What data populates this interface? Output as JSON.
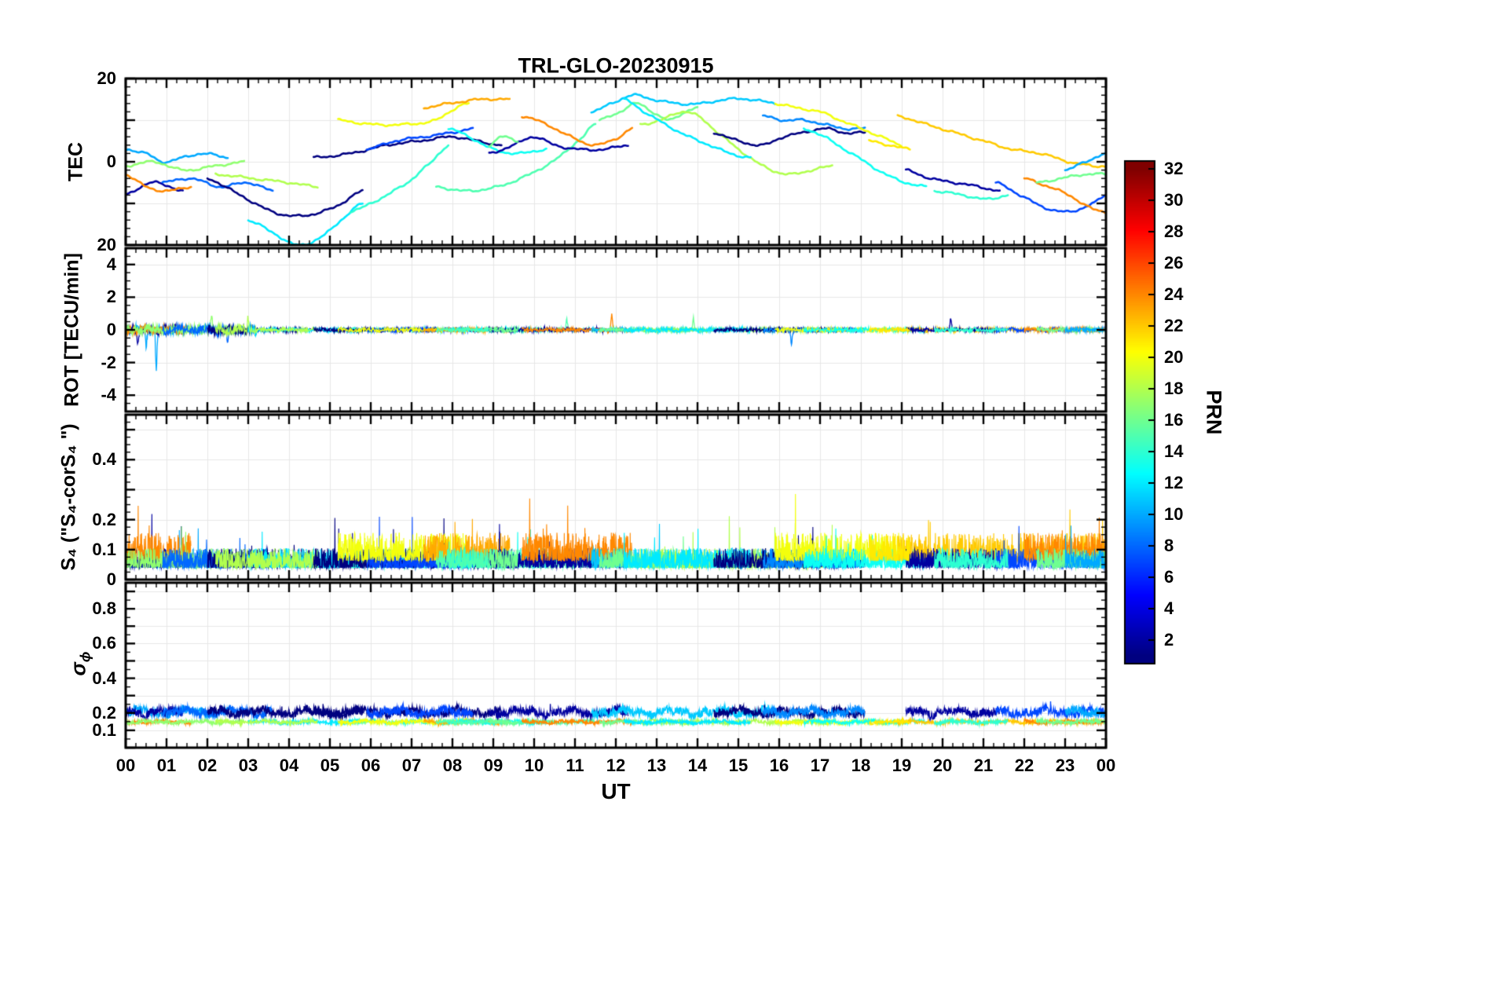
{
  "title": "TRL-GLO-20230915",
  "x_axis": {
    "label": "UT",
    "min": 0,
    "max": 24,
    "major_step": 1,
    "minor_step": 0.25,
    "tick_labels": [
      "00",
      "01",
      "02",
      "03",
      "04",
      "05",
      "06",
      "07",
      "08",
      "09",
      "10",
      "11",
      "12",
      "13",
      "14",
      "15",
      "16",
      "17",
      "18",
      "19",
      "20",
      "21",
      "22",
      "23",
      "00"
    ]
  },
  "colorbar": {
    "label": "PRN",
    "colormap": "jet",
    "min": 0.5,
    "max": 32.5,
    "ticks": [
      2,
      4,
      6,
      8,
      10,
      12,
      14,
      16,
      18,
      20,
      22,
      24,
      26,
      28,
      30,
      32
    ]
  },
  "panels": {
    "tec": {
      "ylabel": "TEC",
      "ylim": [
        -20,
        20
      ],
      "major_step": 10,
      "minor_step": 2,
      "tick_labels": [
        {
          "value": 20,
          "label": "20"
        },
        {
          "value": 0,
          "label": "0"
        },
        {
          "value": -20,
          "label": "20"
        }
      ]
    },
    "rot": {
      "ylabel": "ROT [TECU/min]",
      "ylim": [
        -5,
        5
      ],
      "major_step": 2,
      "minor_step": 0.5,
      "tick_labels": [
        {
          "value": 4,
          "label": "4"
        },
        {
          "value": 2,
          "label": "2"
        },
        {
          "value": 0,
          "label": "0"
        },
        {
          "value": -2,
          "label": "-2"
        },
        {
          "value": -4,
          "label": "-4"
        }
      ]
    },
    "s4": {
      "ylabel": "S₄ (\"S₄-corS₄ \")",
      "ylim": [
        0,
        0.55
      ],
      "major_step": 0.1,
      "minor_step": 0.025,
      "tick_labels": [
        {
          "value": 0.4,
          "label": "0.4"
        },
        {
          "value": 0.2,
          "label": "0.2"
        },
        {
          "value": 0.1,
          "label": "0.1"
        },
        {
          "value": 0,
          "label": "0"
        }
      ]
    },
    "sigma": {
      "ylabel_base": "σ",
      "ylabel_sub": "ϕ",
      "ylim": [
        0,
        0.95
      ],
      "major_step": 0.1,
      "minor_step": 0.05,
      "tick_labels": [
        {
          "value": 0.8,
          "label": "0.8"
        },
        {
          "value": 0.6,
          "label": "0.6"
        },
        {
          "value": 0.4,
          "label": "0.4"
        },
        {
          "value": 0.2,
          "label": "0.2"
        },
        {
          "value": 0.1,
          "label": "0.1"
        }
      ]
    }
  },
  "chart_data": {
    "type": "line",
    "x_unit": "UT hours",
    "colormap": "jet",
    "prn_color_range": [
      1,
      32
    ],
    "panel_order": [
      "tec",
      "rot",
      "s4",
      "sigma"
    ],
    "arcs": [
      {
        "prn": 10,
        "tec": [
          [
            0.0,
            3
          ],
          [
            0.5,
            2
          ],
          [
            0.9,
            0
          ],
          [
            1.4,
            1
          ],
          [
            1.9,
            2
          ],
          [
            2.5,
            1
          ]
        ]
      },
      {
        "prn": 2,
        "tec": [
          [
            0.0,
            -8
          ],
          [
            0.6,
            -5
          ],
          [
            1.1,
            -6
          ],
          [
            1.4,
            -7
          ]
        ]
      },
      {
        "prn": 24,
        "tec": [
          [
            0.0,
            -3
          ],
          [
            0.5,
            -6
          ],
          [
            1.0,
            -7
          ],
          [
            1.6,
            -6
          ]
        ]
      },
      {
        "prn": 17,
        "tec": [
          [
            0.0,
            -1
          ],
          [
            0.7,
            0
          ],
          [
            1.4,
            -2
          ],
          [
            2.2,
            -1
          ],
          [
            2.9,
            0
          ]
        ]
      },
      {
        "prn": 8,
        "tec": [
          [
            0.9,
            -5
          ],
          [
            1.6,
            -4
          ],
          [
            2.3,
            -6
          ],
          [
            3.0,
            -5
          ],
          [
            3.6,
            -7
          ]
        ]
      },
      {
        "prn": 1,
        "tec": [
          [
            2.0,
            -4
          ],
          [
            2.8,
            -8
          ],
          [
            3.6,
            -12
          ],
          [
            4.3,
            -13
          ],
          [
            5.1,
            -11
          ],
          [
            5.8,
            -7
          ]
        ]
      },
      {
        "prn": 12,
        "tec": [
          [
            3.0,
            -14
          ],
          [
            3.6,
            -17
          ],
          [
            4.2,
            -20
          ],
          [
            4.8,
            -18
          ],
          [
            5.4,
            -13
          ],
          [
            5.8,
            -10
          ]
        ]
      },
      {
        "prn": 18,
        "tec": [
          [
            2.2,
            -3
          ],
          [
            3.1,
            -4
          ],
          [
            4.0,
            -5
          ],
          [
            4.7,
            -6
          ]
        ]
      },
      {
        "prn": 14,
        "tec": [
          [
            5.5,
            -12
          ],
          [
            6.2,
            -9
          ],
          [
            6.9,
            -5
          ],
          [
            7.5,
            0
          ],
          [
            7.9,
            4
          ]
        ]
      },
      {
        "prn": 1,
        "tec": [
          [
            4.6,
            1
          ],
          [
            5.5,
            2
          ],
          [
            6.4,
            4
          ],
          [
            7.2,
            5
          ],
          [
            8.0,
            6
          ],
          [
            8.6,
            5
          ],
          [
            9.2,
            4
          ]
        ]
      },
      {
        "prn": 7,
        "tec": [
          [
            5.9,
            3
          ],
          [
            6.6,
            5
          ],
          [
            7.3,
            6
          ],
          [
            8.0,
            7
          ],
          [
            8.5,
            8
          ]
        ]
      },
      {
        "prn": 20,
        "tec": [
          [
            5.2,
            10
          ],
          [
            6.0,
            9
          ],
          [
            6.9,
            9
          ],
          [
            7.6,
            10
          ],
          [
            8.1,
            13
          ],
          [
            8.4,
            14
          ]
        ]
      },
      {
        "prn": 23,
        "tec": [
          [
            7.3,
            13
          ],
          [
            7.9,
            14
          ],
          [
            8.7,
            15
          ],
          [
            9.4,
            15
          ]
        ]
      },
      {
        "prn": 13,
        "tec": [
          [
            7.9,
            8
          ],
          [
            8.4,
            6
          ],
          [
            9.0,
            3
          ],
          [
            9.6,
            2
          ],
          [
            10.3,
            3
          ]
        ]
      },
      {
        "prn": 15,
        "tec": [
          [
            7.6,
            -6
          ],
          [
            8.3,
            -7
          ],
          [
            9.1,
            -6
          ],
          [
            9.9,
            -3
          ],
          [
            10.6,
            1
          ],
          [
            11.2,
            6
          ],
          [
            11.5,
            9
          ]
        ]
      },
      {
        "prn": 2,
        "tec": [
          [
            8.9,
            2
          ],
          [
            9.5,
            4
          ],
          [
            10.0,
            6
          ],
          [
            10.5,
            4
          ],
          [
            11.1,
            3
          ],
          [
            11.7,
            3
          ],
          [
            12.3,
            4
          ]
        ]
      },
      {
        "prn": 24,
        "tec": [
          [
            9.7,
            11
          ],
          [
            10.3,
            9
          ],
          [
            10.9,
            6
          ],
          [
            11.5,
            4
          ],
          [
            12.1,
            6
          ],
          [
            12.4,
            8
          ]
        ]
      },
      {
        "prn": 11,
        "tec": [
          [
            11.4,
            12
          ],
          [
            11.9,
            14
          ],
          [
            12.4,
            16
          ],
          [
            12.9,
            15
          ],
          [
            13.5,
            14
          ],
          [
            14.1,
            14
          ],
          [
            14.7,
            15
          ],
          [
            15.3,
            15
          ],
          [
            15.9,
            14
          ]
        ]
      },
      {
        "prn": 16,
        "tec": [
          [
            11.6,
            10
          ],
          [
            12.1,
            12
          ],
          [
            12.5,
            14
          ],
          [
            12.9,
            12
          ],
          [
            13.3,
            10
          ],
          [
            13.7,
            12
          ],
          [
            14.0,
            13
          ]
        ]
      },
      {
        "prn": 18,
        "tec": [
          [
            12.6,
            9
          ],
          [
            13.1,
            10
          ],
          [
            13.6,
            12
          ],
          [
            14.0,
            11
          ],
          [
            14.5,
            7
          ],
          [
            15.0,
            3
          ],
          [
            15.6,
            -1
          ],
          [
            16.2,
            -3
          ],
          [
            16.8,
            -2
          ],
          [
            17.3,
            -1
          ]
        ]
      },
      {
        "prn": 12,
        "tec": [
          [
            12.2,
            15
          ],
          [
            12.7,
            12
          ],
          [
            13.2,
            9
          ],
          [
            13.8,
            6
          ],
          [
            14.3,
            4
          ],
          [
            14.8,
            2
          ],
          [
            15.3,
            1
          ]
        ]
      },
      {
        "prn": 1,
        "tec": [
          [
            14.4,
            7
          ],
          [
            15.0,
            5
          ],
          [
            15.6,
            4
          ],
          [
            16.1,
            6
          ],
          [
            16.6,
            7
          ],
          [
            17.1,
            8
          ],
          [
            17.6,
            7
          ],
          [
            18.1,
            7
          ]
        ]
      },
      {
        "prn": 9,
        "tec": [
          [
            15.6,
            11
          ],
          [
            16.1,
            10
          ],
          [
            16.6,
            10
          ],
          [
            17.1,
            9
          ],
          [
            17.6,
            8
          ],
          [
            18.1,
            8
          ]
        ]
      },
      {
        "prn": 20,
        "tec": [
          [
            15.9,
            14
          ],
          [
            16.4,
            13
          ],
          [
            17.0,
            12
          ],
          [
            17.5,
            10
          ],
          [
            18.0,
            8
          ],
          [
            18.5,
            6
          ],
          [
            19.0,
            4
          ]
        ]
      },
      {
        "prn": 13,
        "tec": [
          [
            16.6,
            8
          ],
          [
            17.1,
            6
          ],
          [
            17.6,
            3
          ],
          [
            18.1,
            0
          ],
          [
            18.6,
            -3
          ],
          [
            19.1,
            -5
          ],
          [
            19.6,
            -6
          ]
        ]
      },
      {
        "prn": 22,
        "tec": [
          [
            18.9,
            11
          ],
          [
            19.6,
            9
          ],
          [
            20.3,
            7
          ],
          [
            21.0,
            5
          ],
          [
            21.7,
            3
          ],
          [
            22.4,
            2
          ],
          [
            23.1,
            0
          ],
          [
            23.7,
            -1
          ],
          [
            24.0,
            -1
          ]
        ]
      },
      {
        "prn": 2,
        "tec": [
          [
            19.1,
            -2
          ],
          [
            19.7,
            -4
          ],
          [
            20.3,
            -5
          ],
          [
            20.9,
            -6
          ],
          [
            21.4,
            -7
          ]
        ]
      },
      {
        "prn": 7,
        "tec": [
          [
            21.3,
            -5
          ],
          [
            21.9,
            -8
          ],
          [
            22.5,
            -11
          ],
          [
            23.1,
            -12
          ],
          [
            23.7,
            -10
          ],
          [
            24.0,
            -8
          ]
        ]
      },
      {
        "prn": 24,
        "tec": [
          [
            22.0,
            -4
          ],
          [
            22.6,
            -6
          ],
          [
            23.1,
            -8
          ],
          [
            23.6,
            -11
          ],
          [
            24.0,
            -12
          ]
        ]
      },
      {
        "prn": 16,
        "tec": [
          [
            22.3,
            -5
          ],
          [
            22.9,
            -4
          ],
          [
            23.5,
            -3
          ],
          [
            24.0,
            -3
          ]
        ]
      },
      {
        "prn": 14,
        "tec": [
          [
            19.8,
            -7
          ],
          [
            20.5,
            -8
          ],
          [
            21.1,
            -9
          ],
          [
            21.6,
            -8
          ]
        ]
      },
      {
        "prn": 10,
        "tec": [
          [
            23.0,
            -2
          ],
          [
            23.5,
            0
          ],
          [
            24.0,
            2
          ]
        ]
      },
      {
        "prn": 16,
        "tec": [
          [
            8.9,
            4
          ],
          [
            9.2,
            6
          ],
          [
            9.6,
            5
          ]
        ]
      },
      {
        "prn": 21,
        "tec": [
          [
            18.2,
            5
          ],
          [
            18.7,
            4
          ],
          [
            19.2,
            3
          ]
        ]
      }
    ],
    "rot_noise": {
      "amp_quiet": 0.13,
      "amp_active": 0.3,
      "active_before_hour": 3.2,
      "spikes": [
        {
          "prn": 10,
          "t": 0.75,
          "v": -2.5
        },
        {
          "prn": 10,
          "t": 0.5,
          "v": -1.0
        },
        {
          "prn": 17,
          "t": 2.1,
          "v": 1.1
        },
        {
          "prn": 8,
          "t": 2.5,
          "v": -0.9
        },
        {
          "prn": 2,
          "t": 0.3,
          "v": -0.8
        },
        {
          "prn": 18,
          "t": 3.0,
          "v": 0.8
        },
        {
          "prn": 24,
          "t": 11.9,
          "v": 0.9
        },
        {
          "prn": 16,
          "t": 13.9,
          "v": 0.7
        },
        {
          "prn": 9,
          "t": 16.3,
          "v": -0.8
        },
        {
          "prn": 2,
          "t": 20.2,
          "v": 0.7
        },
        {
          "prn": 15,
          "t": 10.8,
          "v": 0.6
        }
      ]
    },
    "s4_noise": {
      "cold": {
        "base": 0.03,
        "amp": 0.06
      },
      "warm": {
        "base": 0.05,
        "amp": 0.085
      },
      "warm_prn_min": 20,
      "spike_prob": 0.006,
      "spike_amp": 0.09
    },
    "sigma_noise": {
      "cold": {
        "base": 0.205,
        "amp": 0.04
      },
      "warm": {
        "base": 0.148,
        "amp": 0.016
      },
      "cold_prn_max": 11
    }
  }
}
